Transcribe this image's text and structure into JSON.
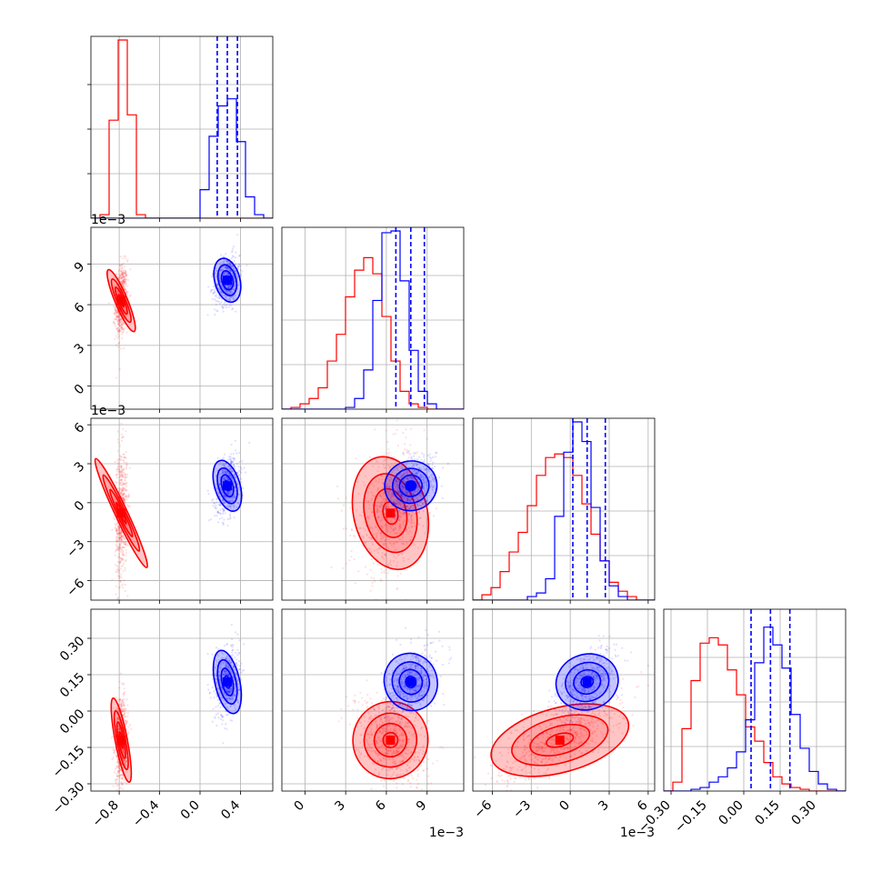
{
  "chart_data": {
    "type": "corner",
    "grid": true,
    "series": [
      {
        "name": "",
        "color": "#ff0000",
        "mean": [
          -0.78,
          0.0063,
          -0.0008,
          -0.12
        ],
        "sd": [
          0.03,
          0.0013,
          0.0024,
          0.09
        ]
      },
      {
        "name": "",
        "color": "#0000ff",
        "mean": [
          0.27,
          0.0078,
          0.0013,
          0.12
        ],
        "sd": [
          0.06,
          0.0009,
          0.0011,
          0.07
        ]
      }
    ],
    "quantile_lines": {
      "color": "#0000ff",
      "values": [
        [
          0.17,
          0.27,
          0.37
        ],
        [
          0.0067,
          0.0078,
          0.0088
        ],
        [
          0.0002,
          0.0013,
          0.0027
        ],
        [
          0.03,
          0.11,
          0.19
        ]
      ]
    },
    "parameters": [
      {
        "range": [
          -1.08,
          0.72
        ],
        "ticks": [
          -0.8,
          -0.4,
          0.0,
          0.4
        ],
        "tick_labels": [
          "−0.8",
          "−0.4",
          "0.0",
          "0.4"
        ],
        "offset_label": ""
      },
      {
        "range": [
          -0.0017,
          0.0117
        ],
        "ticks": [
          0,
          0.003,
          0.006,
          0.009
        ],
        "tick_labels": [
          "0",
          "3",
          "6",
          "9"
        ],
        "offset_label": "1e−3"
      },
      {
        "range": [
          -0.0075,
          0.0065
        ],
        "ticks": [
          -0.006,
          -0.003,
          0,
          0.003,
          0.006
        ],
        "tick_labels": [
          "−6",
          "−3",
          "0",
          "3",
          "6"
        ],
        "offset_label": "1e−3"
      },
      {
        "range": [
          -0.33,
          0.42
        ],
        "ticks": [
          -0.3,
          -0.15,
          0.0,
          0.15,
          0.3
        ],
        "tick_labels": [
          "−0.30",
          "−0.15",
          "0.00",
          "0.15",
          "0.30"
        ],
        "offset_label": ""
      }
    ],
    "histograms": [
      {
        "red": [
          0.0,
          0.02,
          0.55,
          1.0,
          0.58,
          0.02,
          0.0,
          0.0,
          0.0,
          0.0,
          0.0,
          0.0,
          0.0,
          0.0,
          0.0,
          0.0,
          0.0,
          0.0,
          0.0,
          0.0
        ],
        "blue": [
          0.0,
          0.0,
          0.0,
          0.0,
          0.0,
          0.0,
          0.0,
          0.0,
          0.0,
          0.0,
          0.0,
          0.0,
          0.16,
          0.46,
          0.63,
          0.67,
          0.43,
          0.12,
          0.02,
          0.0
        ]
      },
      {
        "red": [
          0.0,
          0.01,
          0.03,
          0.06,
          0.12,
          0.27,
          0.42,
          0.63,
          0.78,
          0.85,
          0.76,
          0.52,
          0.27,
          0.1,
          0.03,
          0.01,
          0.0,
          0.0,
          0.0,
          0.0
        ],
        "blue": [
          0.0,
          0.0,
          0.0,
          0.0,
          0.0,
          0.0,
          0.0,
          0.01,
          0.06,
          0.22,
          0.61,
          0.99,
          1.0,
          0.72,
          0.33,
          0.1,
          0.03,
          0.0,
          0.0,
          0.0
        ],
        "red_x": [
          -0.001,
          -0.0003,
          0.0004,
          0.0011,
          0.0018,
          0.0025,
          0.0032,
          0.0039,
          0.0046,
          0.0053,
          0.006,
          0.0067,
          0.0074,
          0.0081,
          0.0088,
          0.0095,
          0.0102,
          0.0109,
          0.0116,
          0.0123
        ]
      },
      {
        "red": [
          0.0,
          0.03,
          0.07,
          0.16,
          0.27,
          0.38,
          0.53,
          0.7,
          0.8,
          0.82,
          0.8,
          0.7,
          0.54,
          0.37,
          0.22,
          0.1,
          0.05,
          0.02,
          0.0,
          0.0
        ],
        "blue": [
          0.0,
          0.0,
          0.0,
          0.0,
          0.0,
          0.0,
          0.02,
          0.04,
          0.12,
          0.47,
          0.83,
          1.0,
          0.89,
          0.52,
          0.22,
          0.08,
          0.02,
          0.0,
          0.0,
          0.0
        ]
      },
      {
        "red": [
          0.0,
          0.05,
          0.35,
          0.62,
          0.83,
          0.86,
          0.82,
          0.68,
          0.54,
          0.36,
          0.28,
          0.16,
          0.08,
          0.04,
          0.02,
          0.01,
          0.0,
          0.0,
          0.0,
          0.0
        ],
        "blue": [
          0.0,
          0.0,
          0.0,
          0.01,
          0.02,
          0.05,
          0.08,
          0.13,
          0.22,
          0.4,
          0.72,
          0.92,
          0.82,
          0.69,
          0.43,
          0.24,
          0.11,
          0.04,
          0.01,
          0.0
        ]
      }
    ],
    "contour_levels": [
      0.39,
      0.86,
      1.39,
      1.99
    ]
  }
}
